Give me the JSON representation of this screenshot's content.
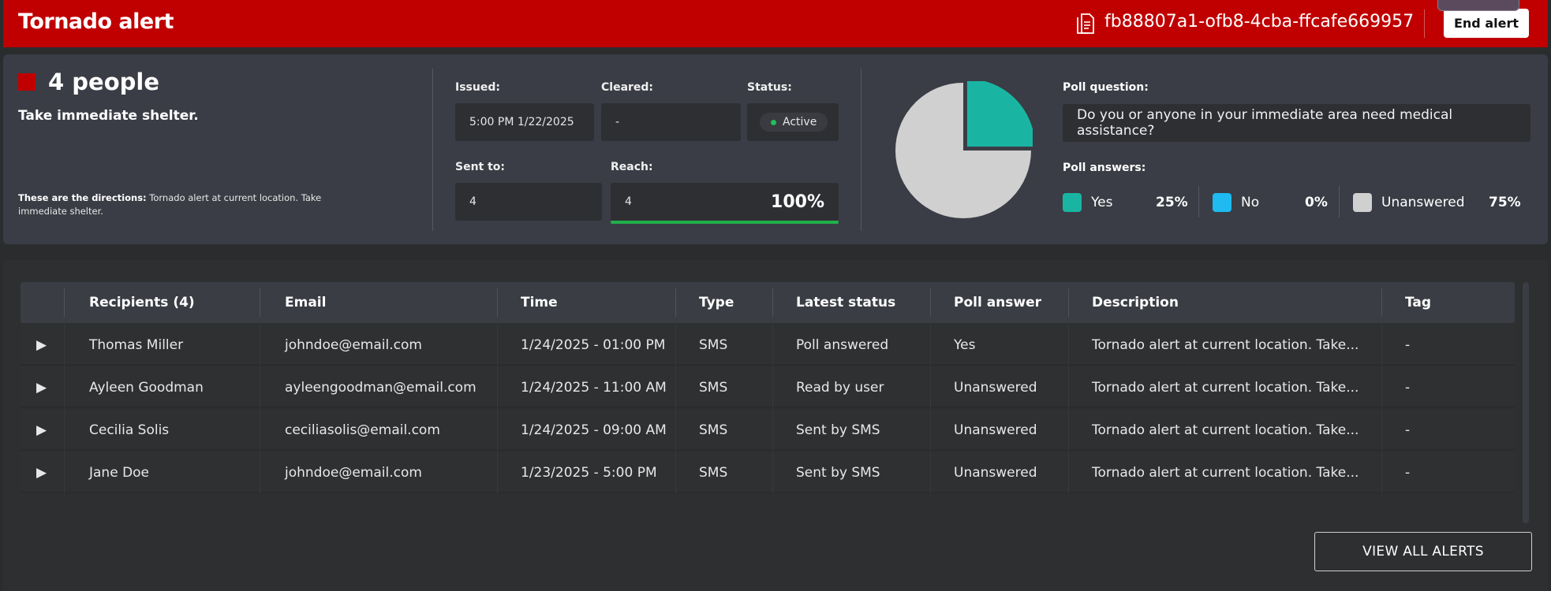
{
  "header": {
    "title": "Tornado alert",
    "alert_id": "fb88807a1-ofb8-4cba-ffcafe669957",
    "end_label": "End alert",
    "doc_icon": "document-icon",
    "color": "#c00000"
  },
  "summary": {
    "count_text": "4 people",
    "instruction": "Take immediate shelter.",
    "directions_label": "These are the directions:",
    "directions_text": " Tornado alert at current location. Take immediate shelter.",
    "issued_label": "Issued:",
    "issued_value": "5:00 PM 1/22/2025",
    "cleared_label": "Cleared:",
    "cleared_value": "-",
    "status_label": "Status:",
    "status_value": "Active",
    "sent_to_label": "Sent to:",
    "sent_to_value": "4",
    "reach_label": "Reach:",
    "reach_value": "4",
    "reach_pct": "100%",
    "reach_fraction": 1.0
  },
  "poll": {
    "question_label": "Poll question:",
    "question": "Do you or anyone in your immediate area need medical assistance?",
    "answers_label": "Poll answers:",
    "answers": [
      {
        "label": "Yes",
        "pct": "25%",
        "value": 25,
        "color": "#1ab5a2"
      },
      {
        "label": "No",
        "pct": "0%",
        "value": 0,
        "color": "#1ebaf0"
      },
      {
        "label": "Unanswered",
        "pct": "75%",
        "value": 75,
        "color": "#d0d0d0"
      }
    ]
  },
  "table": {
    "headers": [
      "Recipients (4)",
      "Email",
      "Time",
      "Type",
      "Latest status",
      "Poll answer",
      "Description",
      "Tag"
    ],
    "rows": [
      {
        "name": "Thomas Miller",
        "email": "johndoe@email.com",
        "time": "1/24/2025 - 01:00 PM",
        "type": "SMS",
        "status": "Poll answered",
        "poll": "Yes",
        "desc": "Tornado alert at current location. Take...",
        "tag": "-"
      },
      {
        "name": "Ayleen Goodman",
        "email": "ayleengoodman@email.com",
        "time": "1/24/2025 - 11:00 AM",
        "type": "SMS",
        "status": "Read by user",
        "poll": "Unanswered",
        "desc": "Tornado alert at current location. Take...",
        "tag": "-"
      },
      {
        "name": "Cecilia Solis",
        "email": "ceciliasolis@email.com",
        "time": "1/24/2025 - 09:00 AM",
        "type": "SMS",
        "status": "Sent by SMS",
        "poll": "Unanswered",
        "desc": "Tornado alert at current location. Take...",
        "tag": "-"
      },
      {
        "name": "Jane Doe",
        "email": "johndoe@email.com",
        "time": "1/23/2025 - 5:00 PM",
        "type": "SMS",
        "status": "Sent by SMS",
        "poll": "Unanswered",
        "desc": "Tornado alert at current location. Take...",
        "tag": "-"
      }
    ],
    "expand_glyph": "▶",
    "view_all_label": "VIEW ALL ALERTS"
  }
}
